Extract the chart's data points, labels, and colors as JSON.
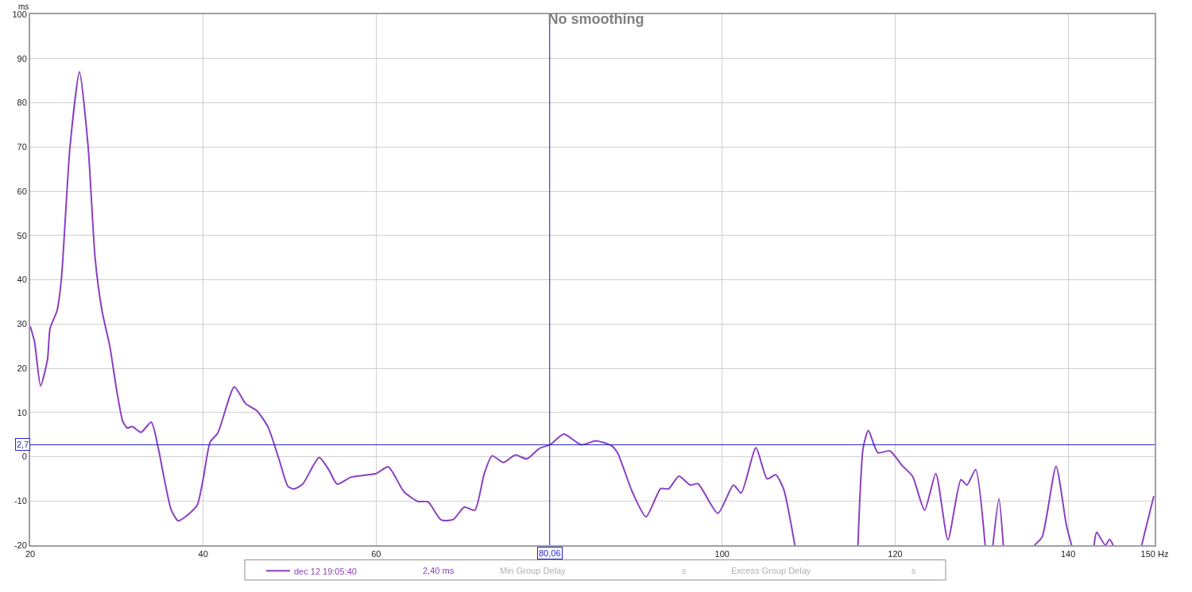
{
  "chart_data": {
    "type": "line",
    "title": "No smoothing",
    "ylabel": "ms",
    "x": [
      20,
      20.5,
      21.2,
      22,
      22.3,
      23.1,
      23.6,
      24.6,
      25.7,
      26.7,
      27.5,
      28.3,
      29.2,
      30,
      30.7,
      31.2,
      31.8,
      32.8,
      34,
      34.8,
      35.5,
      36.3,
      37.1,
      38,
      39.3,
      40,
      40.8,
      41.7,
      43.6,
      44.9,
      46.2,
      47.5,
      48.8,
      49.8,
      50.5,
      51.5,
      53.4,
      54.5,
      55.5,
      57.1,
      58.6,
      60,
      61.4,
      63.2,
      64.8,
      66,
      67.5,
      68.9,
      70.2,
      71.4,
      72.5,
      73.4,
      74.7,
      76.1,
      77.4,
      78.9,
      80.1,
      81.7,
      83.7,
      85.4,
      87.2,
      87.9,
      89.6,
      91.2,
      92.9,
      93.8,
      95,
      96.3,
      97.2,
      99.5,
      101.3,
      102.2,
      103.9,
      105.2,
      106.2,
      107.1,
      108.4,
      112,
      115.7,
      116.3,
      116.9,
      118,
      119.4,
      120.8,
      122,
      123.4,
      124.7,
      126.1,
      127.6,
      128.3,
      129.3,
      130.4,
      130.9,
      131.3,
      132,
      132.5,
      134,
      136.1,
      137,
      138.6,
      139.8,
      140.4,
      141.7,
      143,
      143.3,
      144.3,
      144.8,
      145.2,
      147,
      148.5,
      149.9
    ],
    "series": [
      {
        "name": "dec 12 19:05:40",
        "color": "#8b3fc0",
        "values": [
          29.5,
          26,
          16,
          22,
          29,
          33,
          40,
          70,
          87,
          70,
          45,
          33,
          25,
          15,
          8,
          6.5,
          6.8,
          5.5,
          7.8,
          2,
          -5,
          -12,
          -14.5,
          -13.5,
          -11,
          -5,
          3.3,
          5.4,
          15.8,
          12,
          10.4,
          6.7,
          -0.8,
          -6.7,
          -7.3,
          -6.2,
          -0.2,
          -2.9,
          -6.2,
          -4.6,
          -4.2,
          -3.8,
          -2.3,
          -7.9,
          -10.1,
          -10.2,
          -14.3,
          -14.2,
          -11.4,
          -12.1,
          -3.8,
          0.2,
          -1.3,
          0.4,
          -0.5,
          1.9,
          2.7,
          5.1,
          2.7,
          3.6,
          2.5,
          0.9,
          -7.9,
          -13.6,
          -7.2,
          -7.3,
          -4.4,
          -6.4,
          -6.1,
          -12.8,
          -6.4,
          -8.2,
          2,
          -5,
          -4.1,
          -7.3,
          -20,
          null,
          -20,
          2,
          5.9,
          0.9,
          1.3,
          -2,
          -4.4,
          -12.1,
          -3.8,
          -18.8,
          -5.2,
          -6.4,
          -2.9,
          -20,
          null,
          -20,
          -9.5,
          -20,
          null,
          -20,
          -18.1,
          -2.2,
          -15.5,
          -20,
          null,
          -20,
          -17.1,
          -20,
          -18.7,
          -20,
          null,
          -20,
          -8.9
        ]
      }
    ],
    "xlim": [
      20,
      150
    ],
    "xticks": [
      20,
      40,
      60,
      {
        "value": 80,
        "label": null
      },
      100,
      120,
      140,
      {
        "value": 150,
        "label": "150 Hz"
      }
    ],
    "ylim": [
      -20,
      100
    ],
    "yticks": [
      -20,
      -10,
      0,
      10,
      20,
      30,
      40,
      50,
      60,
      70,
      80,
      90,
      100
    ],
    "ref_lines": [
      {
        "axis": "x",
        "value": 80.06,
        "label": "80,06",
        "color": "#2323c8"
      },
      {
        "axis": "y",
        "value": 2.7,
        "label": "2,7",
        "color": "#2323c8"
      }
    ],
    "annotations": [
      "2,40 ms",
      "Min Group Delay",
      "s",
      "Excess Group Delay",
      "s"
    ],
    "grid": true,
    "legend": "bottom",
    "marker": "none",
    "line_style": "solid"
  }
}
